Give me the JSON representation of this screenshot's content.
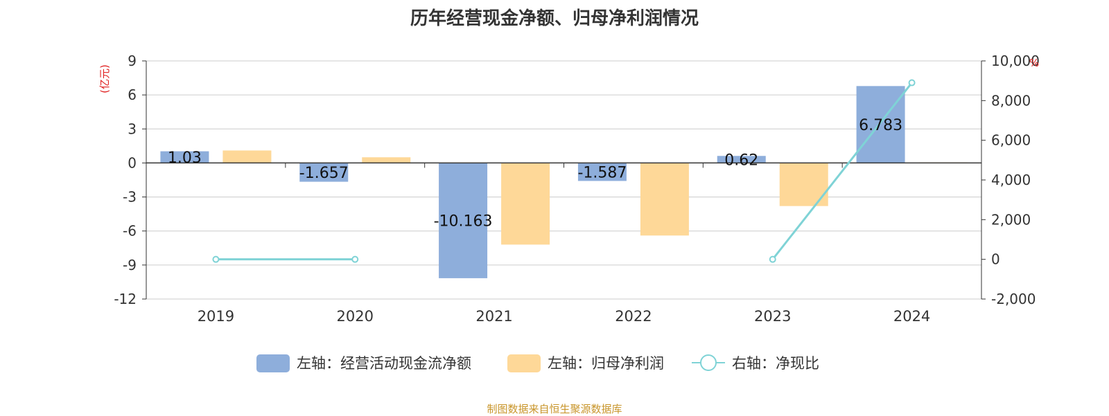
{
  "chart_data": {
    "title": "历年经营现金净额、归母净利润情况",
    "type": "bar",
    "categories": [
      "2019",
      "2020",
      "2021",
      "2022",
      "2023",
      "2024"
    ],
    "left_axis": {
      "unit": "(亿元)",
      "ylim": [
        -12,
        9
      ],
      "ticks": [
        "9",
        "6",
        "3",
        "0",
        "-3",
        "-6",
        "-9",
        "-12"
      ],
      "tick_values": [
        9,
        6,
        3,
        0,
        -3,
        -6,
        -9,
        -12
      ]
    },
    "right_axis": {
      "unit": "%",
      "ylim": [
        -2000,
        10000
      ],
      "ticks": [
        "10,000",
        "8,000",
        "6,000",
        "4,000",
        "2,000",
        "0",
        "-2,000"
      ],
      "tick_values": [
        10000,
        8000,
        6000,
        4000,
        2000,
        0,
        -2000
      ]
    },
    "series": [
      {
        "name": "左轴：经营活动现金流净额",
        "type": "bar",
        "axis": "left",
        "color": "#8eaedb",
        "values": [
          1.03,
          -1.657,
          -10.163,
          -1.587,
          0.62,
          6.783
        ],
        "labels": [
          "1.03",
          "-1.657",
          "-10.163",
          "-1.587",
          "0.62",
          "6.783"
        ]
      },
      {
        "name": "左轴：归母净利润",
        "type": "bar",
        "axis": "left",
        "color": "#fed898",
        "values": [
          1.1,
          0.5,
          -7.2,
          -6.4,
          -3.8,
          0.05
        ]
      },
      {
        "name": "右轴：净现比",
        "type": "line",
        "axis": "right",
        "color": "#7fd3d6",
        "values": [
          0,
          0,
          null,
          null,
          0,
          8900
        ]
      }
    ],
    "grid": true,
    "legend_position": "bottom"
  },
  "source_note": "制图数据来自恒生聚源数据库"
}
